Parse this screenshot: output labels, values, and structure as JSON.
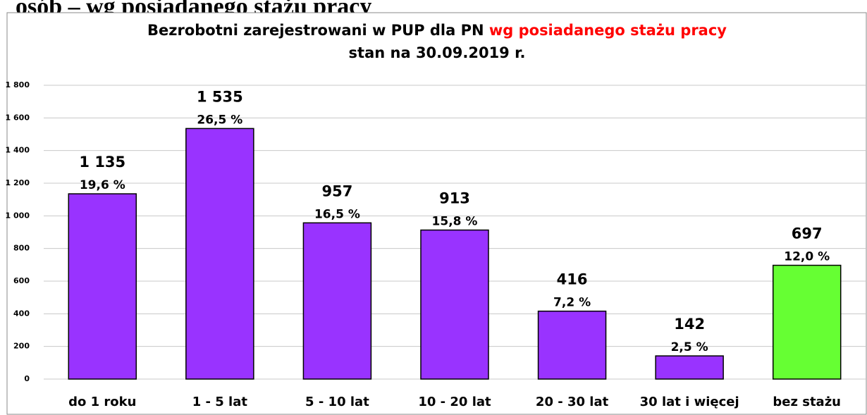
{
  "header": "osób – wg posiadanego stażu pracy",
  "chart_data": {
    "type": "bar",
    "title": "Bezrobotni zarejestrowani w PUP dla PN ",
    "title_highlight": "wg posiadanego stażu pracy",
    "subtitle": "stan na 30.09.2019 r.",
    "categories": [
      "do 1 roku",
      "1 - 5 lat",
      "5 - 10 lat",
      "10 - 20 lat",
      "20 - 30 lat",
      "30 lat i więcej",
      "bez stażu"
    ],
    "values": [
      1135,
      1535,
      957,
      913,
      416,
      142,
      697
    ],
    "value_labels": [
      "1 135",
      "1 535",
      "957",
      "913",
      "416",
      "142",
      "697"
    ],
    "percents": [
      19.6,
      26.5,
      16.5,
      15.8,
      7.2,
      2.5,
      12.0
    ],
    "percent_labels": [
      "19,6 %",
      "26,5 %",
      "16,5 %",
      "15,8 %",
      "7,2 %",
      "2,5 %",
      "12,0 %"
    ],
    "colors": [
      "#9933ff",
      "#9933ff",
      "#9933ff",
      "#9933ff",
      "#9933ff",
      "#9933ff",
      "#66ff33"
    ],
    "title_highlight_color": "#ff0000",
    "ylim": [
      0,
      1800
    ],
    "yticks": [
      0,
      200,
      400,
      600,
      800,
      {
        "value": 1000,
        "label": "1 000"
      },
      {
        "value": 1200,
        "label": "1 200"
      },
      {
        "value": 1400,
        "label": "1 400"
      },
      {
        "value": 1600,
        "label": "1 600"
      },
      {
        "value": 1800,
        "label": "1 800"
      }
    ],
    "grid": true
  }
}
